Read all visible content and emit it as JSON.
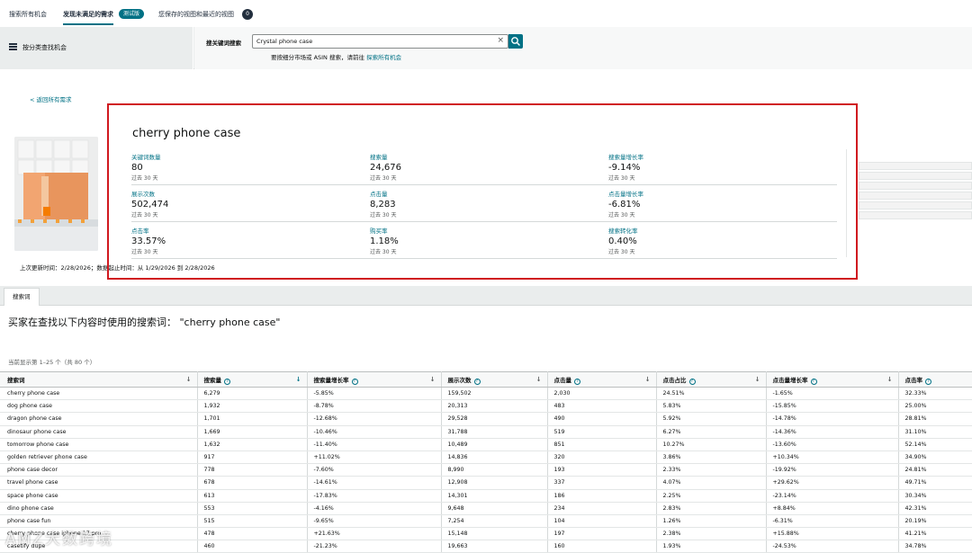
{
  "top_tabs": {
    "tab1": "搜索所有机会",
    "tab2": "发现未满足的需求",
    "beta": "测试版",
    "tab3": "您保存的视图和最近的视图",
    "tab3_count": "0"
  },
  "filter": {
    "category_label": "按分类查找机会",
    "keyword_label": "搜关键词搜索",
    "search_value": "Crystal phone case",
    "hint_text": "要按细分市场或 ASIN 搜索，请前往",
    "hint_link": "探索所有机会"
  },
  "back_link": "< 返回所有需求",
  "detail": {
    "title": "cherry phone case",
    "metrics": [
      {
        "label": "关键词数量",
        "value": "80",
        "sub": "过去 30 天"
      },
      {
        "label": "搜索量",
        "value": "24,676",
        "sub": "过去 30 天"
      },
      {
        "label": "搜索量增长率",
        "value": "-9.14%",
        "sub": "过去 30 天"
      },
      {
        "label": "展示次数",
        "value": "502,474",
        "sub": "过去 30 天"
      },
      {
        "label": "点击量",
        "value": "8,283",
        "sub": "过去 30 天"
      },
      {
        "label": "点击量增长率",
        "value": "-6.81%",
        "sub": "过去 30 天"
      },
      {
        "label": "点击率",
        "value": "33.57%",
        "sub": "过去 30 天"
      },
      {
        "label": "购买率",
        "value": "1.18%",
        "sub": "过去 30 天"
      },
      {
        "label": "搜索转化率",
        "value": "0.40%",
        "sub": "过去 30 天"
      }
    ]
  },
  "update_line": "上次更新时间：2/28/2026；数据起止时间：从 1/29/2026 到 2/28/2026",
  "section_tab": "搜索词",
  "results_title": "买家在查找以下内容时使用的搜索词：  \"cherry phone case\"",
  "showing": "当前显示第 1–25 个（共 80 个）",
  "table": {
    "headers": [
      "搜索词",
      "搜索量",
      "搜索量增长率",
      "展示次数",
      "点击量",
      "点击占比",
      "点击量增长率",
      "点击率"
    ],
    "rows": [
      [
        "cherry phone case",
        "6,279",
        "-5.85%",
        "159,502",
        "2,030",
        "24.51%",
        "-1.65%",
        "32.33%"
      ],
      [
        "dog phone case",
        "1,932",
        "-8.78%",
        "20,313",
        "483",
        "5.83%",
        "-15.85%",
        "25.00%"
      ],
      [
        "dragon phone case",
        "1,701",
        "-12.68%",
        "29,528",
        "490",
        "5.92%",
        "-14.78%",
        "28.81%"
      ],
      [
        "dinosaur phone case",
        "1,669",
        "-10.46%",
        "31,788",
        "519",
        "6.27%",
        "-14.36%",
        "31.10%"
      ],
      [
        "tomorrow phone case",
        "1,632",
        "-11.40%",
        "10,489",
        "851",
        "10.27%",
        "-13.60%",
        "52.14%"
      ],
      [
        "golden retriever phone case",
        "917",
        "+11.02%",
        "14,836",
        "320",
        "3.86%",
        "+10.34%",
        "34.90%"
      ],
      [
        "phone case decor",
        "778",
        "-7.60%",
        "8,990",
        "193",
        "2.33%",
        "-19.92%",
        "24.81%"
      ],
      [
        "travel phone case",
        "678",
        "-14.61%",
        "12,908",
        "337",
        "4.07%",
        "+29.62%",
        "49.71%"
      ],
      [
        "space phone case",
        "613",
        "-17.83%",
        "14,301",
        "186",
        "2.25%",
        "-23.14%",
        "30.34%"
      ],
      [
        "dino phone case",
        "553",
        "-4.16%",
        "9,648",
        "234",
        "2.83%",
        "+8.84%",
        "42.31%"
      ],
      [
        "phone case fun",
        "515",
        "-9.65%",
        "7,254",
        "104",
        "1.26%",
        "-6.31%",
        "20.19%"
      ],
      [
        "cherry phone case iphone 17 pro",
        "478",
        "+21.63%",
        "15,148",
        "197",
        "2.38%",
        "+15.88%",
        "41.21%"
      ],
      [
        "casetify dupe",
        "460",
        "-21.23%",
        "19,663",
        "160",
        "1.93%",
        "-24.53%",
        "34.78%"
      ]
    ]
  },
  "watermark": "AMZ大数跨境",
  "colors": {
    "accent": "#007185",
    "frame": "#d0191f"
  }
}
